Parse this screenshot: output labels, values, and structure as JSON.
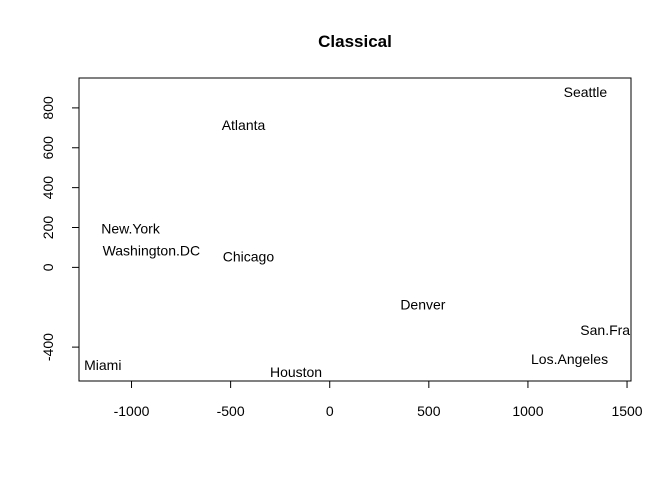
{
  "chart_data": {
    "type": "scatter",
    "title": "Classical",
    "xlabel": "",
    "ylabel": "",
    "xlim": [
      -1265,
      1520
    ],
    "ylim": [
      -570,
      950
    ],
    "x_ticks": [
      -1000,
      -500,
      0,
      500,
      1000,
      1500
    ],
    "y_ticks": [
      -400,
      0,
      200,
      400,
      600,
      800
    ],
    "grid": false,
    "legend": "none",
    "points": [
      {
        "label": "Seattle",
        "x": 1290,
        "y": 880
      },
      {
        "label": "Atlanta",
        "x": -435,
        "y": 715
      },
      {
        "label": "New.York",
        "x": -1005,
        "y": 195
      },
      {
        "label": "Washington.DC",
        "x": -900,
        "y": 85
      },
      {
        "label": "Chicago",
        "x": -410,
        "y": 55
      },
      {
        "label": "Denver",
        "x": 470,
        "y": -185
      },
      {
        "label": "San.Francisco",
        "x": 1490,
        "y": -315
      },
      {
        "label": "Los.Angeles",
        "x": 1210,
        "y": -460
      },
      {
        "label": "Miami",
        "x": -1145,
        "y": -490
      },
      {
        "label": "Houston",
        "x": -170,
        "y": -525
      }
    ]
  }
}
